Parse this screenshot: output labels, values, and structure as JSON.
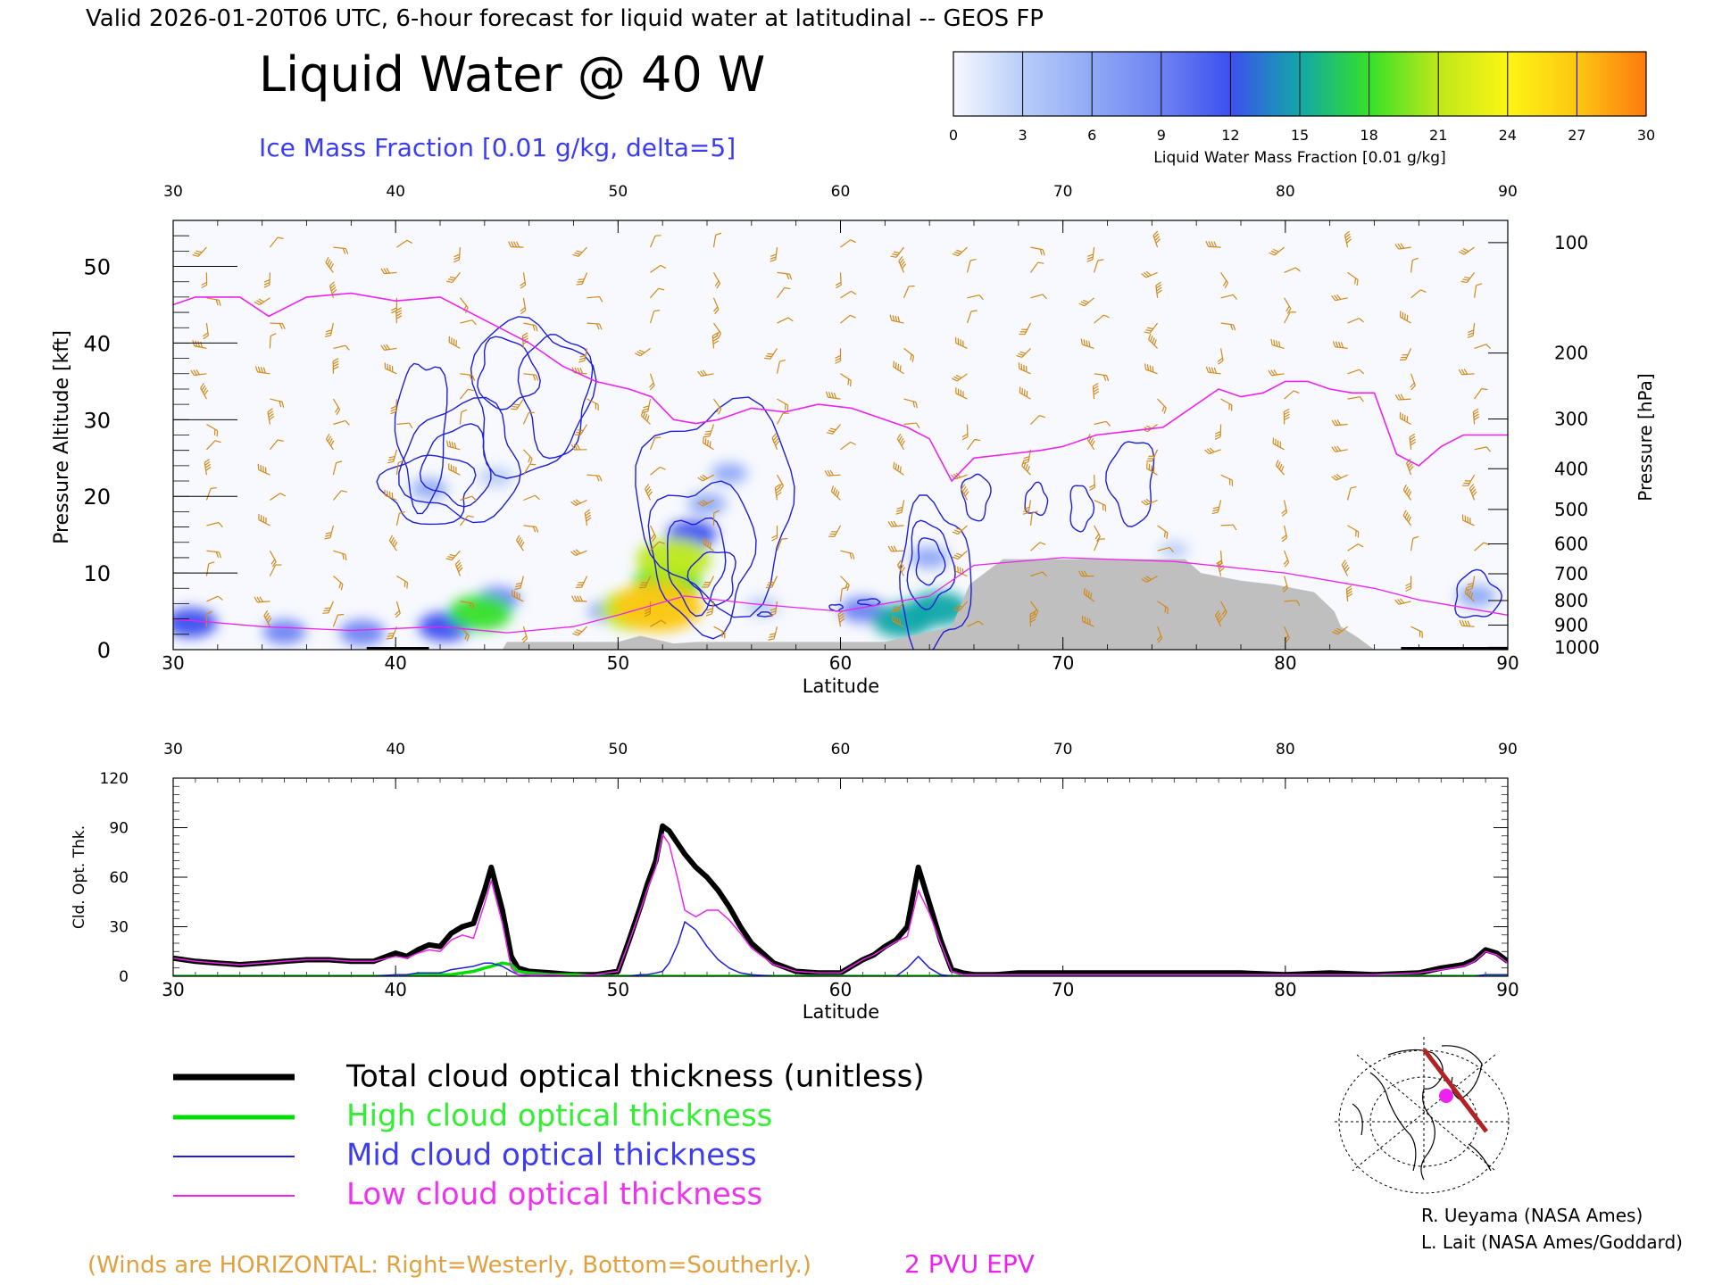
{
  "header": {
    "valid_line": "Valid 2026-01-20T06 UTC, 6-hour forecast for liquid water at latitudinal -- GEOS FP",
    "title": "Liquid Water @ 40 W",
    "subtitle": "Ice Mass Fraction [0.01 g/kg, delta=5]"
  },
  "colorbar": {
    "label": "Liquid Water Mass Fraction [0.01 g/kg]",
    "ticks": [
      "0",
      "3",
      "6",
      "9",
      "12",
      "15",
      "18",
      "21",
      "24",
      "27",
      "30"
    ],
    "colors": [
      "#f7f9fe",
      "#b8cdf9",
      "#8fa9f5",
      "#6e83f2",
      "#3c50ef",
      "#12a7a8",
      "#35e02a",
      "#bde81a",
      "#fdf515",
      "#fdc712",
      "#fc7a10"
    ]
  },
  "chart_data": [
    {
      "type": "heatmap",
      "xlabel": "Latitude",
      "ylabel": "Pressure Altitude [kft]",
      "y2label": "Pressure [hPa]",
      "xlim": [
        30,
        90
      ],
      "ylim": [
        0,
        56
      ],
      "x_ticks": [
        "30",
        "40",
        "50",
        "60",
        "70",
        "80",
        "90"
      ],
      "y_ticks": [
        "0",
        "10",
        "20",
        "30",
        "40",
        "50"
      ],
      "pressure_ticks": [
        {
          "label": "100",
          "kft": 53.1
        },
        {
          "label": "200",
          "kft": 38.7
        },
        {
          "label": "300",
          "kft": 30.1
        },
        {
          "label": "400",
          "kft": 23.6
        },
        {
          "label": "500",
          "kft": 18.3
        },
        {
          "label": "600",
          "kft": 13.8
        },
        {
          "label": "700",
          "kft": 9.9
        },
        {
          "label": "800",
          "kft": 6.4
        },
        {
          "label": "900",
          "kft": 3.2
        },
        {
          "label": "1000",
          "kft": 0.3
        }
      ],
      "liquid_water_blobs": [
        {
          "lat": 30.8,
          "kft": 3.5,
          "value": 12
        },
        {
          "lat": 35.0,
          "kft": 2.3,
          "value": 8
        },
        {
          "lat": 38.5,
          "kft": 2.2,
          "value": 9
        },
        {
          "lat": 42.2,
          "kft": 3.0,
          "value": 12
        },
        {
          "lat": 43.8,
          "kft": 4.8,
          "value": 17
        },
        {
          "lat": 44.6,
          "kft": 6.6,
          "value": 8
        },
        {
          "lat": 41.5,
          "kft": 21.0,
          "value": 5
        },
        {
          "lat": 44.5,
          "kft": 22.5,
          "value": 4
        },
        {
          "lat": 49.5,
          "kft": 5.0,
          "value": 6
        },
        {
          "lat": 50.8,
          "kft": 5.2,
          "value": 21
        },
        {
          "lat": 51.8,
          "kft": 5.6,
          "value": 28
        },
        {
          "lat": 52.2,
          "kft": 8.7,
          "value": 19
        },
        {
          "lat": 52.5,
          "kft": 11.8,
          "value": 22
        },
        {
          "lat": 53.3,
          "kft": 15.0,
          "value": 11
        },
        {
          "lat": 54.0,
          "kft": 19.0,
          "value": 6
        },
        {
          "lat": 55.0,
          "kft": 23.0,
          "value": 5
        },
        {
          "lat": 56.5,
          "kft": 5.6,
          "value": 4
        },
        {
          "lat": 61.0,
          "kft": 5.2,
          "value": 9
        },
        {
          "lat": 62.8,
          "kft": 3.8,
          "value": 16
        },
        {
          "lat": 64.4,
          "kft": 5.3,
          "value": 16
        },
        {
          "lat": 64.0,
          "kft": 12.0,
          "value": 6
        },
        {
          "lat": 75.0,
          "kft": 13.0,
          "value": 2
        },
        {
          "lat": 88.6,
          "kft": 7.0,
          "value": 6
        }
      ],
      "ice_contours_interval": 5,
      "pv2_tropopause": {
        "lat": [
          30,
          31,
          33,
          34.3,
          36,
          38,
          40,
          42,
          44,
          46,
          47.5,
          49,
          50.5,
          51.5,
          52.5,
          53.5,
          54.5,
          56,
          57.5,
          59,
          60.5,
          62,
          63,
          64,
          65,
          66,
          67.5,
          69,
          70,
          71.5,
          73,
          74.5,
          75.5,
          77,
          78,
          79,
          80,
          81,
          82,
          83,
          84,
          85,
          86,
          87,
          88,
          89,
          90
        ],
        "kft": [
          45.0,
          46.0,
          46.0,
          43.5,
          46.0,
          46.5,
          45.5,
          46.0,
          43.0,
          40.0,
          37.0,
          35.0,
          34.0,
          33.0,
          30.0,
          29.5,
          30.0,
          31.5,
          31.0,
          32.0,
          31.5,
          30.0,
          29.0,
          27.5,
          22.0,
          25.0,
          25.5,
          26.0,
          26.5,
          28.0,
          28.5,
          29.0,
          31.0,
          34.0,
          33.0,
          33.5,
          35.0,
          35.0,
          34.0,
          33.5,
          33.5,
          25.5,
          24.0,
          26.5,
          28.0,
          28.0,
          28.0
        ]
      },
      "terrain": {
        "lat": [
          44.8,
          45.0,
          50.0,
          51.0,
          52.5,
          53.5,
          57.5,
          58.5,
          62.0,
          65.0,
          65.8,
          67.3,
          75.5,
          76.2,
          78.0,
          79.5,
          81.3,
          82.2,
          82.5,
          83.3,
          84.0
        ],
        "kft": [
          0,
          1.0,
          1.0,
          1.8,
          0.8,
          1.0,
          1.0,
          1.0,
          1.0,
          3.0,
          8.5,
          11.8,
          11.8,
          10.0,
          9.0,
          8.5,
          7.5,
          5.0,
          3.0,
          1.5,
          0
        ]
      }
    },
    {
      "type": "line",
      "xlabel": "Latitude",
      "ylabel": "Cld. Opt. Thk.",
      "xlim": [
        30,
        90
      ],
      "ylim": [
        0,
        120
      ],
      "x_ticks": [
        "30",
        "40",
        "50",
        "60",
        "70",
        "80",
        "90"
      ],
      "y_ticks": [
        "0",
        "30",
        "60",
        "90",
        "120"
      ],
      "x": [
        30,
        31,
        32,
        33,
        34,
        35,
        36,
        37,
        38,
        39,
        40,
        40.5,
        41,
        41.5,
        42,
        42.5,
        43,
        43.5,
        44,
        44.3,
        44.8,
        45.2,
        45.5,
        46,
        47,
        48,
        49,
        49.5,
        50,
        50.5,
        51,
        51.3,
        51.7,
        52,
        52.3,
        52.7,
        53,
        53.5,
        54,
        54.5,
        55,
        55.5,
        56,
        57,
        58,
        59,
        60,
        61,
        61.5,
        62,
        62.5,
        63,
        63.5,
        64,
        64.5,
        65,
        65.5,
        66,
        67,
        68,
        69,
        70,
        72,
        75,
        78,
        80,
        82,
        84,
        86,
        87,
        88,
        88.5,
        89,
        89.5,
        90
      ],
      "series": [
        {
          "name": "Total cloud optical thickness (unitless)",
          "color": "#000000",
          "values": [
            11,
            9,
            8,
            7,
            8,
            9,
            10,
            10,
            9,
            9,
            14,
            12,
            16,
            19,
            18,
            26,
            30,
            32,
            52,
            66,
            40,
            12,
            5,
            3,
            2,
            1,
            1,
            2,
            3,
            22,
            42,
            55,
            70,
            91,
            88,
            80,
            74,
            66,
            60,
            52,
            42,
            30,
            20,
            8,
            3,
            2,
            2,
            10,
            13,
            18,
            22,
            30,
            66,
            44,
            22,
            4,
            2,
            1,
            1,
            2,
            2,
            2,
            2,
            2,
            2,
            1,
            2,
            1,
            2,
            5,
            7,
            10,
            16,
            14,
            9
          ]
        },
        {
          "name": "High cloud optical thickness",
          "color": "#00dd00",
          "values": [
            0,
            0,
            0,
            0,
            0,
            0,
            0,
            0,
            0,
            0,
            0,
            0,
            1,
            1,
            1,
            1,
            2,
            3,
            5,
            6,
            8,
            7,
            3,
            2,
            1,
            1,
            0,
            0,
            0,
            0,
            0,
            0,
            0,
            0,
            0,
            0,
            0,
            0,
            0,
            0,
            0,
            0,
            0,
            0,
            0,
            0,
            0,
            0,
            0,
            0,
            0,
            0,
            0,
            0,
            0,
            0,
            0,
            0,
            0,
            0,
            0,
            0,
            0,
            0,
            0,
            0,
            0,
            0,
            0,
            0,
            0,
            0,
            0,
            0,
            0
          ]
        },
        {
          "name": "Mid cloud optical thickness",
          "color": "#1f1fd6",
          "values": [
            0,
            0,
            0,
            0,
            0,
            0,
            0,
            0,
            0,
            0,
            1,
            1,
            2,
            2,
            2,
            4,
            5,
            6,
            8,
            8,
            6,
            3,
            1,
            0,
            0,
            0,
            0,
            0,
            0,
            0,
            1,
            1,
            2,
            3,
            8,
            20,
            33,
            28,
            18,
            10,
            5,
            2,
            1,
            0,
            0,
            0,
            0,
            0,
            0,
            0,
            0,
            5,
            12,
            5,
            1,
            0,
            0,
            0,
            0,
            0,
            0,
            0,
            0,
            0,
            0,
            0,
            0,
            0,
            0,
            0,
            0,
            0,
            1,
            1,
            1
          ]
        },
        {
          "name": "Low cloud optical thickness",
          "color": "#ee22ee",
          "values": [
            11,
            9,
            8,
            7,
            8,
            9,
            10,
            10,
            9,
            9,
            12,
            11,
            14,
            16,
            15,
            22,
            25,
            23,
            44,
            58,
            32,
            5,
            1,
            1,
            1,
            0,
            1,
            2,
            3,
            21,
            40,
            52,
            66,
            86,
            80,
            58,
            40,
            36,
            40,
            40,
            34,
            26,
            17,
            7,
            3,
            2,
            2,
            10,
            13,
            17,
            21,
            24,
            52,
            38,
            20,
            3,
            1,
            1,
            1,
            1,
            1,
            1,
            1,
            1,
            1,
            1,
            1,
            1,
            2,
            4,
            6,
            9,
            15,
            13,
            8
          ]
        }
      ]
    }
  ],
  "legend": {
    "total": "Total cloud optical thickness (unitless)",
    "high": "High cloud optical thickness",
    "mid": "Mid cloud optical thickness",
    "low": "Low cloud optical thickness"
  },
  "footer": {
    "winds_note": "(Winds are HORIZONTAL: Right=Westerly, Bottom=Southerly.)",
    "pvu_label": "2 PVU EPV",
    "credit1": "R. Ueyama (NASA Ames)",
    "credit2": "L. Lait (NASA Ames/Goddard)"
  },
  "colors": {
    "wind": "#d18a1a",
    "tropopause": "#ee22ee",
    "ice_contour": "#1f1fd6",
    "terrain": "#bfbfbf",
    "subtitle": "#3b3bf0",
    "winds_note": "#e0a040",
    "pvu": "#ee22ee"
  }
}
